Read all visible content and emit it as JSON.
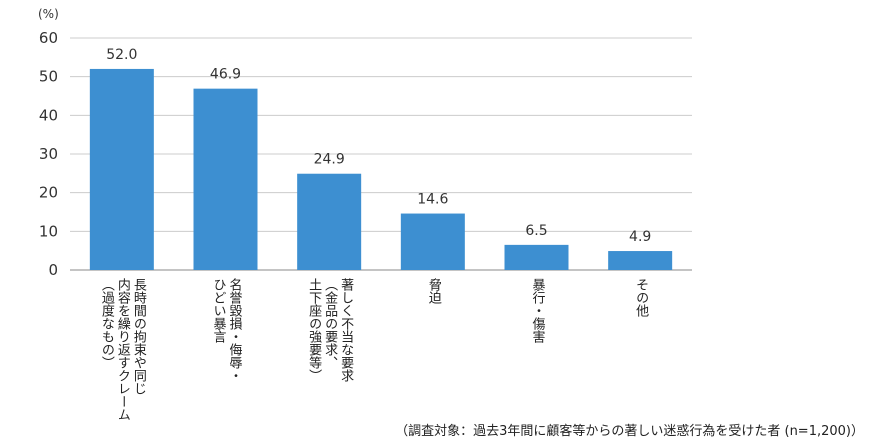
{
  "chart_data": {
    "type": "bar",
    "unit_label": "(%)",
    "ylim": [
      0,
      60
    ],
    "yticks": [
      0,
      10,
      20,
      30,
      40,
      50,
      60
    ],
    "grid": true,
    "bar_color": "#3d8fd1",
    "grid_color": "#cccccc",
    "categories": [
      {
        "lines": [
          "長時間の拘束や同じ",
          "内容を繰り返すクレーム",
          "（過度なもの）"
        ]
      },
      {
        "lines": [
          "名誉毀損・侮辱・",
          "ひどい暴言"
        ]
      },
      {
        "lines": [
          "著しく不当な要求",
          "（金品の要求、",
          "土下座の強要等）"
        ]
      },
      {
        "lines": [
          "脅迫"
        ]
      },
      {
        "lines": [
          "暴行・傷害"
        ]
      },
      {
        "lines": [
          "その他"
        ]
      }
    ],
    "values": [
      52.0,
      46.9,
      24.9,
      14.6,
      6.5,
      4.9
    ],
    "value_labels": [
      "52.0",
      "46.9",
      "24.9",
      "14.6",
      "6.5",
      "4.9"
    ]
  },
  "footnote": "（調査対象：過去3年間に顧客等からの著しい迷惑行為を受けた者 (n=1,200)）"
}
